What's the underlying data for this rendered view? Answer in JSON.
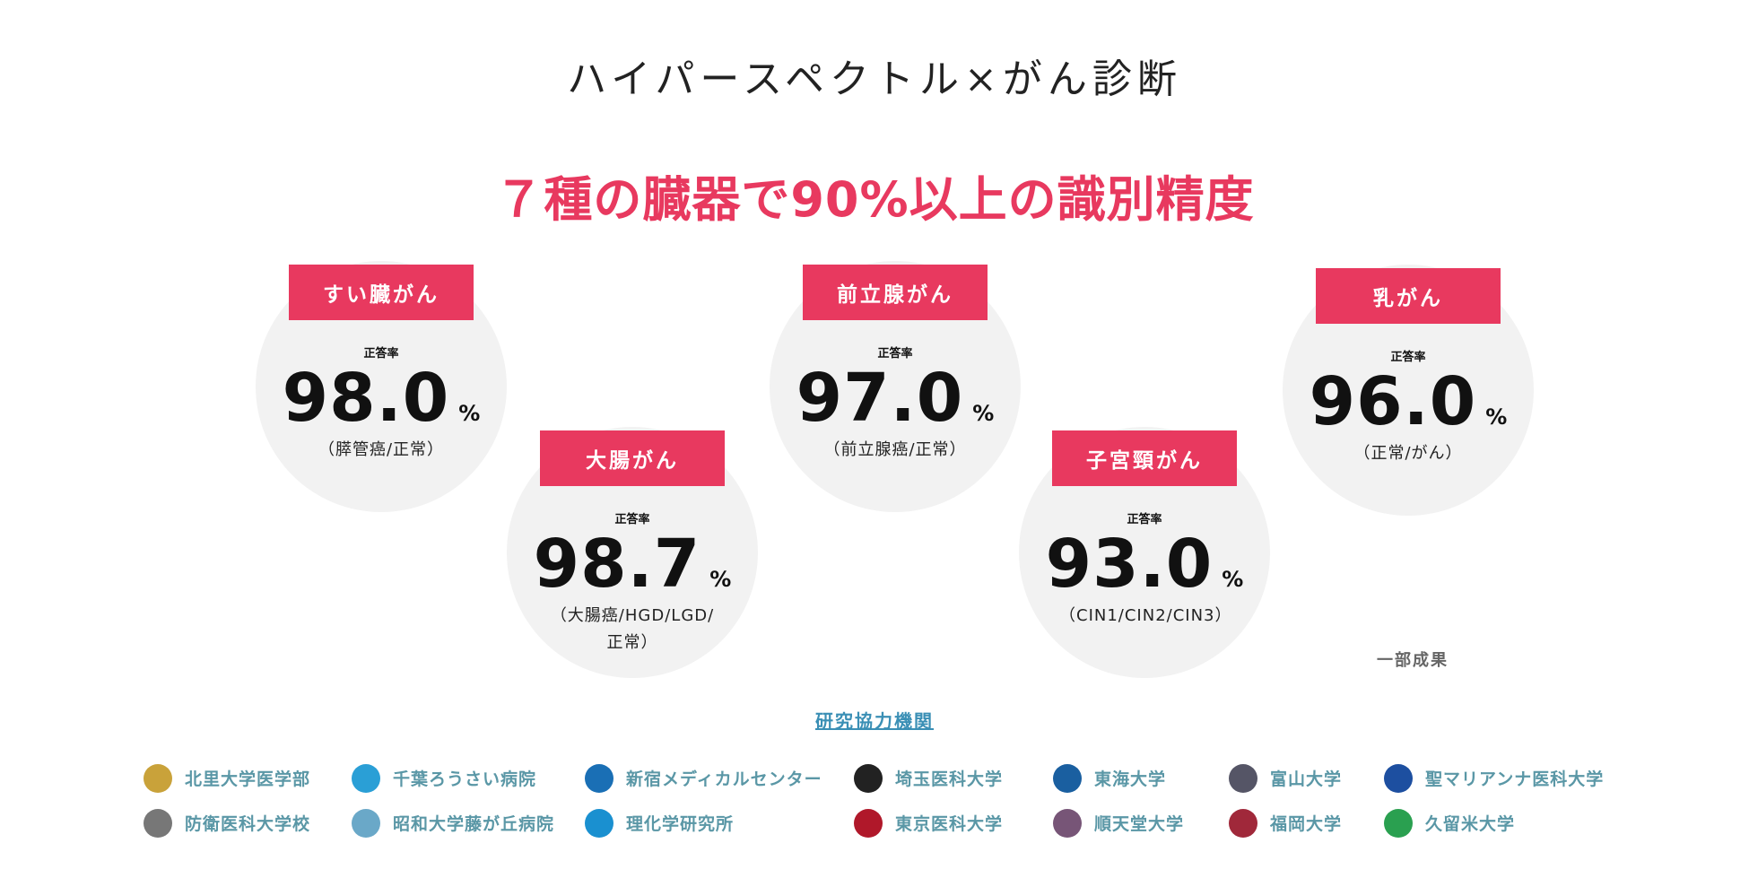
{
  "header": {
    "title": "ハイパースペクトル×がん診断",
    "headline": "７種の臓器で90%以上の識別精度"
  },
  "cards": [
    {
      "label": "すい臓がん",
      "rate_label": "正答率",
      "value": "98.0",
      "unit": "%",
      "note": "（膵管癌/正常）"
    },
    {
      "label": "大腸がん",
      "rate_label": "正答率",
      "value": "98.7",
      "unit": "%",
      "note": "（大腸癌/HGD/LGD/正常）"
    },
    {
      "label": "前立腺がん",
      "rate_label": "正答率",
      "value": "97.0",
      "unit": "%",
      "note": "（前立腺癌/正常）"
    },
    {
      "label": "子宮頸がん",
      "rate_label": "正答率",
      "value": "93.0",
      "unit": "%",
      "note": "（CIN1/CIN2/CIN3）"
    },
    {
      "label": "乳がん",
      "rate_label": "正答率",
      "value": "96.0",
      "unit": "%",
      "note": "（正常/がん）"
    }
  ],
  "footnote": "一部成果",
  "partners": {
    "title": "研究協力機関",
    "institutions": [
      "北里大学医学部",
      "千葉ろうさい病院",
      "新宿メディカルセンター",
      "埼玉医科大学",
      "東海大学",
      "富山大学",
      "聖マリアンナ医科大学",
      "防衛医科大学校",
      "昭和大学藤が丘病院",
      "理化学研究所",
      "東京医科大学",
      "順天堂大学",
      "福岡大学",
      "久留米大学"
    ]
  }
}
